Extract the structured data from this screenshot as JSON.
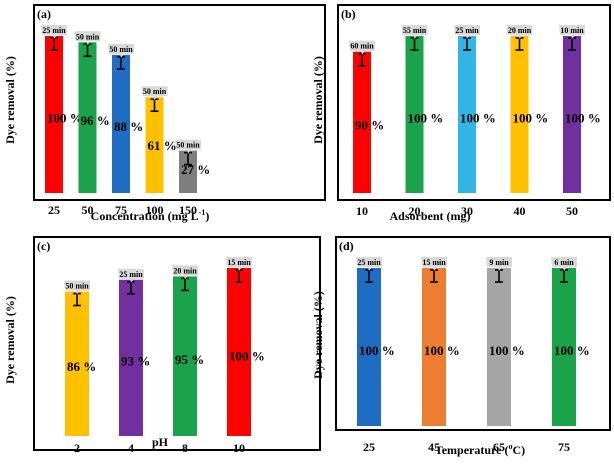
{
  "chart_data": [
    {
      "type": "bar",
      "panel": "(a)",
      "ylabel": "Dye removal (%)",
      "xlabel": "Concentration (mg L",
      "xlabel_sup": "-1",
      "xlabel_close": ")",
      "categories": [
        "25",
        "50",
        "75",
        "100",
        "150"
      ],
      "values": [
        100,
        96,
        88,
        61,
        27
      ],
      "value_labels": [
        "100 %",
        "96 %",
        "88 %",
        "61 %",
        "27 %"
      ],
      "times": [
        "25 min",
        "50 min",
        "50 min",
        "50 min",
        "50 min"
      ],
      "colors": [
        "#ff0000",
        "#1aa34a",
        "#1f6dc2",
        "#ffc000",
        "#7f7f7f"
      ],
      "ylim": [
        0,
        100
      ]
    },
    {
      "type": "bar",
      "panel": "(b)",
      "ylabel": "Dye removal (%)",
      "xlabel": "Adsorbent (mg)",
      "categories": [
        "10",
        "20",
        "30",
        "40",
        "50"
      ],
      "values": [
        90,
        100,
        100,
        100,
        100
      ],
      "value_labels": [
        "90 %",
        "100 %",
        "100 %",
        "100 %",
        "100 %"
      ],
      "times": [
        "60 min",
        "55 min",
        "25 min",
        "20 min",
        "10 min"
      ],
      "colors": [
        "#ff0000",
        "#1aa34a",
        "#33b5e5",
        "#ffc000",
        "#7030a0"
      ],
      "ylim": [
        0,
        100
      ]
    },
    {
      "type": "bar",
      "panel": "(c)",
      "ylabel": "Dye removal (%)",
      "xlabel": "pH",
      "categories": [
        "2",
        "4",
        "8",
        "10"
      ],
      "values": [
        86,
        93,
        95,
        100
      ],
      "value_labels": [
        "86 %",
        "93 %",
        "95 %",
        "100 %"
      ],
      "times": [
        "50 min",
        "25 min",
        "20 min",
        "15 min"
      ],
      "colors": [
        "#ffc000",
        "#7030a0",
        "#1aa34a",
        "#ff0000"
      ],
      "ylim": [
        0,
        100
      ]
    },
    {
      "type": "bar",
      "panel": "(d)",
      "ylabel": "Dye removal (%)",
      "xlabel": "Temperature (",
      "xlabel_sup": "o",
      "xlabel_close": "C)",
      "categories": [
        "25",
        "45",
        "65",
        "75"
      ],
      "values": [
        100,
        100,
        100,
        100
      ],
      "value_labels": [
        "100 %",
        "100 %",
        "100 %",
        "100 %"
      ],
      "times": [
        "25 min",
        "15 min",
        "9 min",
        "6 min"
      ],
      "colors": [
        "#1f6dc2",
        "#ed7d31",
        "#a5a5a5",
        "#1aa34a"
      ],
      "ylim": [
        0,
        100
      ]
    }
  ]
}
